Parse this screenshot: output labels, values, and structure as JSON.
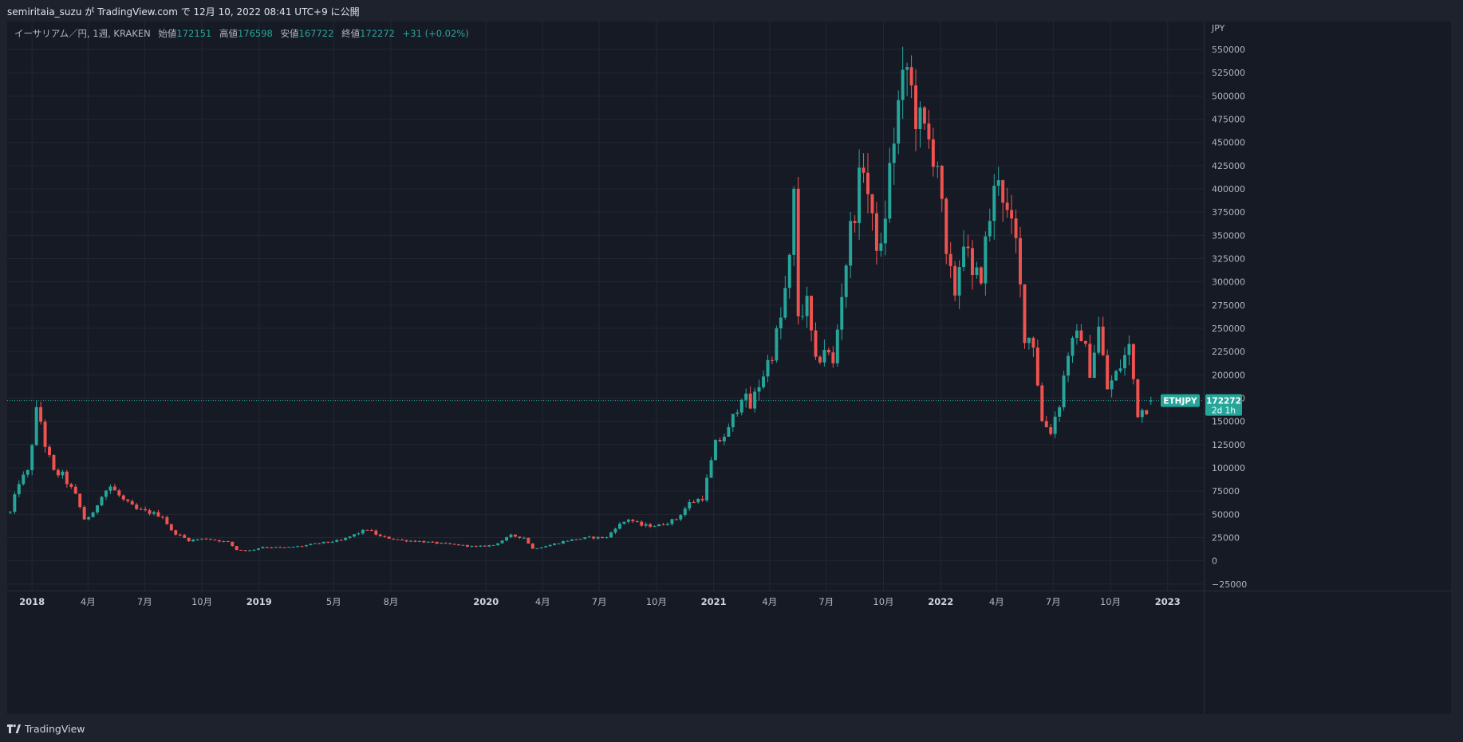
{
  "header": {
    "published": "semiritaia_suzu が TradingView.com で 12月 10, 2022 08:41 UTC+9 に公開"
  },
  "legend": {
    "symbol": "イーサリアム／円, 1週, KRAKEN",
    "open_label": "始値",
    "open": "172151",
    "high_label": "高値",
    "high": "176598",
    "low_label": "安値",
    "low": "167722",
    "close_label": "終値",
    "close": "172272",
    "change": "+31 (+0.02%)"
  },
  "footer": {
    "brand": "TradingView"
  },
  "colors": {
    "up": "#26a69a",
    "down": "#ef5350",
    "background": "#161a25",
    "grid": "#222733",
    "text": "#b2b5be"
  },
  "chart_data": {
    "type": "candlestick",
    "currency": "JPY",
    "y_ticks": [
      550000,
      525000,
      500000,
      475000,
      450000,
      425000,
      400000,
      375000,
      350000,
      325000,
      300000,
      275000,
      250000,
      225000,
      200000,
      175000,
      150000,
      125000,
      100000,
      75000,
      50000,
      25000,
      0,
      -25000
    ],
    "y_tick_labels": [
      "550000",
      "525000",
      "500000",
      "475000",
      "450000",
      "425000",
      "400000",
      "375000",
      "350000",
      "325000",
      "300000",
      "275000",
      "250000",
      "225000",
      "200000",
      "175000",
      "150000",
      "125000",
      "100000",
      "75000",
      "50000",
      "25000",
      "0",
      "−25000"
    ],
    "ylim": [
      -32000,
      580000
    ],
    "x_ticks": [
      {
        "label": "2018",
        "date": "2018-01-01",
        "bold": true
      },
      {
        "label": "4月",
        "date": "2018-04-01"
      },
      {
        "label": "7月",
        "date": "2018-07-01"
      },
      {
        "label": "10月",
        "date": "2018-10-01"
      },
      {
        "label": "2019",
        "date": "2019-01-01",
        "bold": true
      },
      {
        "label": "5月",
        "date": "2019-05-01"
      },
      {
        "label": "8月",
        "date": "2019-08-01"
      },
      {
        "label": "2020",
        "date": "2020-01-01",
        "bold": true
      },
      {
        "label": "4月",
        "date": "2020-04-01"
      },
      {
        "label": "7月",
        "date": "2020-07-01"
      },
      {
        "label": "10月",
        "date": "2020-10-01"
      },
      {
        "label": "2021",
        "date": "2021-01-01",
        "bold": true
      },
      {
        "label": "4月",
        "date": "2021-04-01"
      },
      {
        "label": "7月",
        "date": "2021-07-01"
      },
      {
        "label": "10月",
        "date": "2021-10-01"
      },
      {
        "label": "2022",
        "date": "2022-01-01",
        "bold": true
      },
      {
        "label": "4月",
        "date": "2022-04-01"
      },
      {
        "label": "7月",
        "date": "2022-07-01"
      },
      {
        "label": "10月",
        "date": "2022-10-01"
      },
      {
        "label": "2023",
        "date": "2023-01-01",
        "bold": true
      }
    ],
    "xlim": [
      "2017-11-22",
      "2023-02-28"
    ],
    "last_price": 172272,
    "price_label": {
      "symbol": "ETHJPY",
      "price": "172272",
      "countdown": "2d 1h"
    },
    "close_points": [
      [
        "2017-11-27",
        52000
      ],
      [
        "2017-12-11",
        85000
      ],
      [
        "2017-12-25",
        95000
      ],
      [
        "2018-01-08",
        160000
      ],
      [
        "2018-01-15",
        150000
      ],
      [
        "2018-01-22",
        125000
      ],
      [
        "2018-02-05",
        95000
      ],
      [
        "2018-02-19",
        92000
      ],
      [
        "2018-03-12",
        70000
      ],
      [
        "2018-03-26",
        45000
      ],
      [
        "2018-04-09",
        50000
      ],
      [
        "2018-04-23",
        72000
      ],
      [
        "2018-05-07",
        80000
      ],
      [
        "2018-05-28",
        65000
      ],
      [
        "2018-06-18",
        55000
      ],
      [
        "2018-07-09",
        52000
      ],
      [
        "2018-07-30",
        48000
      ],
      [
        "2018-08-13",
        32000
      ],
      [
        "2018-09-10",
        22000
      ],
      [
        "2018-10-08",
        24000
      ],
      [
        "2018-11-12",
        20000
      ],
      [
        "2018-11-26",
        12000
      ],
      [
        "2018-12-17",
        11000
      ],
      [
        "2019-01-07",
        15000
      ],
      [
        "2019-02-11",
        14000
      ],
      [
        "2019-03-11",
        16000
      ],
      [
        "2019-04-08",
        19000
      ],
      [
        "2019-05-13",
        22000
      ],
      [
        "2019-06-10",
        30000
      ],
      [
        "2019-06-24",
        34000
      ],
      [
        "2019-07-15",
        26000
      ],
      [
        "2019-08-19",
        22000
      ],
      [
        "2019-09-16",
        21000
      ],
      [
        "2019-10-14",
        19000
      ],
      [
        "2019-11-18",
        17000
      ],
      [
        "2019-12-16",
        15000
      ],
      [
        "2020-01-13",
        17000
      ],
      [
        "2020-02-10",
        27000
      ],
      [
        "2020-03-02",
        25000
      ],
      [
        "2020-03-16",
        13000
      ],
      [
        "2020-04-13",
        17000
      ],
      [
        "2020-05-11",
        22000
      ],
      [
        "2020-06-15",
        25000
      ],
      [
        "2020-07-13",
        25000
      ],
      [
        "2020-07-27",
        36000
      ],
      [
        "2020-08-17",
        45000
      ],
      [
        "2020-09-07",
        38000
      ],
      [
        "2020-10-05",
        38000
      ],
      [
        "2020-11-02",
        45000
      ],
      [
        "2020-11-23",
        62000
      ],
      [
        "2020-12-14",
        68000
      ],
      [
        "2021-01-04",
        125000
      ],
      [
        "2021-01-25",
        140000
      ],
      [
        "2021-02-15",
        180000
      ],
      [
        "2021-03-01",
        165000
      ],
      [
        "2021-03-15",
        190000
      ],
      [
        "2021-04-05",
        225000
      ],
      [
        "2021-04-19",
        260000
      ],
      [
        "2021-05-03",
        320000
      ],
      [
        "2021-05-10",
        390000
      ],
      [
        "2021-05-17",
        265000
      ],
      [
        "2021-05-31",
        275000
      ],
      [
        "2021-06-14",
        210000
      ],
      [
        "2021-06-28",
        230000
      ],
      [
        "2021-07-12",
        210000
      ],
      [
        "2021-07-26",
        290000
      ],
      [
        "2021-08-09",
        355000
      ],
      [
        "2021-08-30",
        430000
      ],
      [
        "2021-09-13",
        360000
      ],
      [
        "2021-09-27",
        330000
      ],
      [
        "2021-10-11",
        420000
      ],
      [
        "2021-10-25",
        490000
      ],
      [
        "2021-11-08",
        530000
      ],
      [
        "2021-11-22",
        480000
      ],
      [
        "2021-12-06",
        460000
      ],
      [
        "2021-12-27",
        430000
      ],
      [
        "2022-01-10",
        320000
      ],
      [
        "2022-01-24",
        290000
      ],
      [
        "2022-02-07",
        350000
      ],
      [
        "2022-02-21",
        300000
      ],
      [
        "2022-03-07",
        310000
      ],
      [
        "2022-03-21",
        370000
      ],
      [
        "2022-04-04",
        420000
      ],
      [
        "2022-04-18",
        370000
      ],
      [
        "2022-05-02",
        340000
      ],
      [
        "2022-05-16",
        245000
      ],
      [
        "2022-05-30",
        235000
      ],
      [
        "2022-06-13",
        150000
      ],
      [
        "2022-06-27",
        140000
      ],
      [
        "2022-07-11",
        170000
      ],
      [
        "2022-07-25",
        225000
      ],
      [
        "2022-08-15",
        245000
      ],
      [
        "2022-08-29",
        205000
      ],
      [
        "2022-09-12",
        250000
      ],
      [
        "2022-09-26",
        185000
      ],
      [
        "2022-10-10",
        200000
      ],
      [
        "2022-10-31",
        230000
      ],
      [
        "2022-11-14",
        160000
      ],
      [
        "2022-11-28",
        165000
      ],
      [
        "2022-12-05",
        172272
      ]
    ]
  }
}
